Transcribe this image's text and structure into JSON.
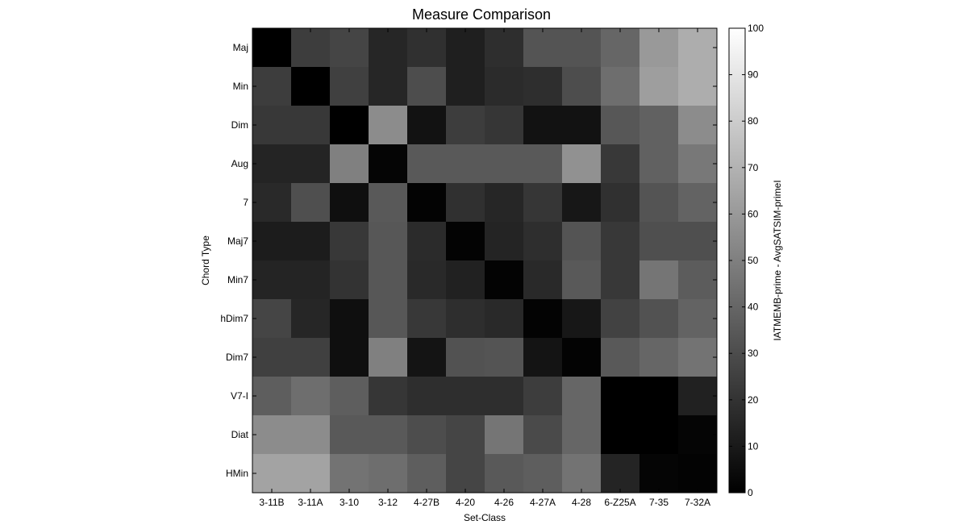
{
  "chart_data": {
    "type": "heatmap",
    "title": "Measure Comparison",
    "xlabel": "Set-Class",
    "ylabel": "Chord Type",
    "colorbar_label": "IATMEMB-prime - AvgSATSIM-primeI",
    "x_categories": [
      "3-11B",
      "3-11A",
      "3-10",
      "3-12",
      "4-27B",
      "4-20",
      "4-26",
      "4-27A",
      "4-28",
      "6-Z25A",
      "7-35",
      "7-32A"
    ],
    "y_categories": [
      "Maj",
      "Min",
      "Dim",
      "Aug",
      "7",
      "Maj7",
      "Min7",
      "hDim7",
      "Dim7",
      "V7-I",
      "Diat",
      "HMin"
    ],
    "colorbar_range": [
      0,
      100
    ],
    "colorbar_ticks": [
      "0",
      "10",
      "20",
      "30",
      "40",
      "50",
      "60",
      "70",
      "80",
      "90",
      "100"
    ],
    "colormap": "gray",
    "values": [
      [
        0,
        24,
        27,
        15,
        19,
        12,
        18,
        33,
        33,
        40,
        60,
        68
      ],
      [
        24,
        0,
        25,
        15,
        30,
        12,
        17,
        18,
        30,
        43,
        62,
        68
      ],
      [
        22,
        22,
        0,
        55,
        7,
        24,
        21,
        7,
        7,
        34,
        38,
        55
      ],
      [
        14,
        14,
        50,
        2,
        35,
        35,
        35,
        35,
        57,
        22,
        38,
        47
      ],
      [
        16,
        31,
        6,
        35,
        1,
        19,
        15,
        21,
        9,
        19,
        33,
        39
      ],
      [
        11,
        11,
        22,
        34,
        17,
        1,
        14,
        18,
        33,
        22,
        31,
        31
      ],
      [
        14,
        14,
        20,
        34,
        16,
        13,
        1,
        16,
        35,
        22,
        46,
        36
      ],
      [
        27,
        15,
        6,
        34,
        22,
        18,
        16,
        1,
        9,
        26,
        32,
        39
      ],
      [
        25,
        25,
        6,
        50,
        8,
        32,
        33,
        8,
        1,
        35,
        40,
        45
      ],
      [
        37,
        43,
        37,
        21,
        18,
        18,
        18,
        24,
        40,
        0,
        0,
        13
      ],
      [
        55,
        55,
        35,
        35,
        30,
        27,
        46,
        29,
        40,
        0,
        0,
        2
      ],
      [
        64,
        64,
        45,
        43,
        37,
        27,
        35,
        37,
        45,
        14,
        2,
        1
      ]
    ]
  }
}
